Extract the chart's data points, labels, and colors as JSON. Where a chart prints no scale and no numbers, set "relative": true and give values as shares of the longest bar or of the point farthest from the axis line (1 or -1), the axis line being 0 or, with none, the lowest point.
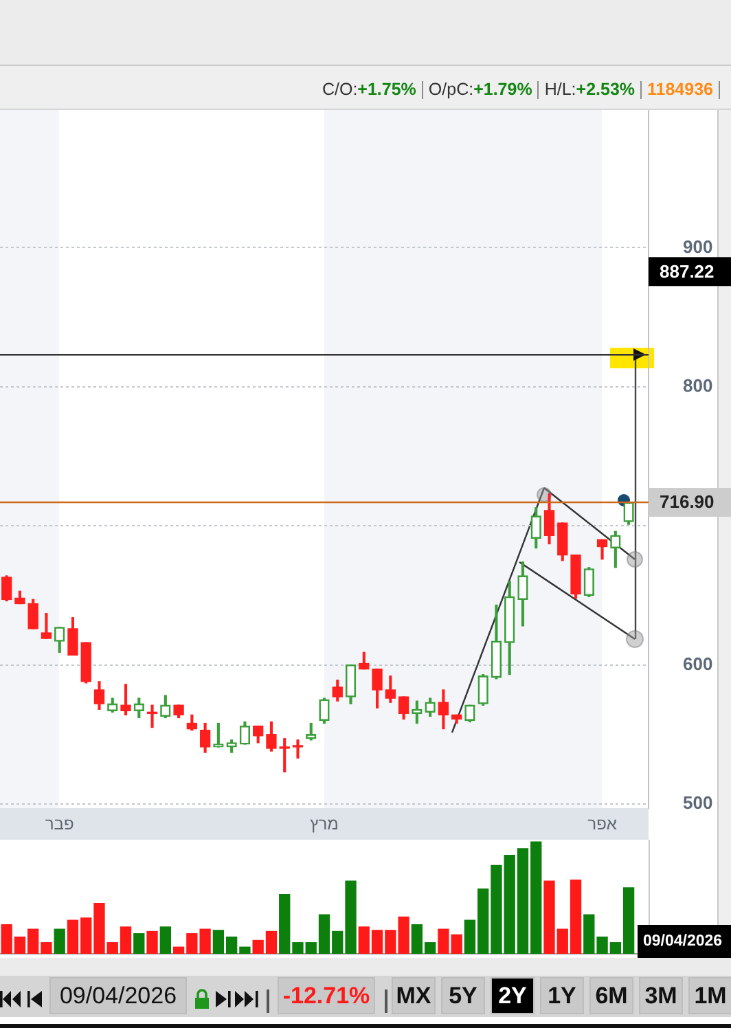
{
  "chart_data": [
    {
      "type": "candlestick",
      "categories": [
        null,
        null,
        null,
        null,
        "פבר",
        null,
        null,
        null,
        null,
        null,
        null,
        null,
        null,
        null,
        null,
        null,
        null,
        null,
        null,
        null,
        null,
        null,
        null,
        null,
        "מרץ",
        null,
        null,
        null,
        null,
        null,
        null,
        null,
        null,
        null,
        null,
        null,
        null,
        null,
        null,
        null,
        null,
        null,
        null,
        null,
        null,
        "אפר",
        null,
        null
      ],
      "ohlc": [
        [
          663,
          664,
          646,
          647
        ],
        [
          648,
          653,
          644,
          644
        ],
        [
          644,
          647,
          626,
          626
        ],
        [
          623,
          637,
          619,
          619
        ],
        [
          617,
          627,
          609,
          627
        ],
        [
          626,
          634,
          607,
          607
        ],
        [
          616,
          616,
          587,
          588
        ],
        [
          582,
          588,
          568,
          572
        ],
        [
          567,
          576,
          566,
          572
        ],
        [
          571,
          586,
          564,
          567
        ],
        [
          567,
          576,
          562,
          572
        ],
        [
          566,
          571,
          555,
          565
        ],
        [
          563,
          578,
          562,
          571
        ],
        [
          571,
          571,
          562,
          564
        ],
        [
          558,
          564,
          553,
          554
        ],
        [
          553,
          558,
          537,
          541
        ],
        [
          541,
          558,
          541,
          543
        ],
        [
          541,
          546,
          537,
          544
        ],
        [
          543,
          559,
          543,
          556
        ],
        [
          556,
          556,
          544,
          549
        ],
        [
          550,
          559,
          538,
          540
        ],
        [
          541,
          547,
          523,
          540
        ],
        [
          542,
          546,
          533,
          541
        ],
        [
          547,
          558,
          546,
          550
        ],
        [
          560,
          576,
          558,
          575
        ],
        [
          584,
          589,
          574,
          577
        ],
        [
          577,
          600,
          572,
          600
        ],
        [
          601,
          609,
          597,
          597
        ],
        [
          597,
          597,
          569,
          582
        ],
        [
          582,
          592,
          573,
          576
        ],
        [
          577,
          577,
          561,
          565
        ],
        [
          565,
          574,
          558,
          568
        ],
        [
          566,
          576,
          563,
          573
        ],
        [
          573,
          582,
          554,
          564
        ],
        [
          564,
          564,
          558,
          561
        ],
        [
          560,
          571,
          559,
          571
        ],
        [
          572,
          593,
          571,
          592
        ],
        [
          591,
          643,
          590,
          617
        ],
        [
          616,
          660,
          593,
          649
        ],
        [
          647,
          674,
          628,
          664
        ],
        [
          691,
          713,
          684,
          707
        ],
        [
          711,
          723,
          687,
          693
        ],
        [
          702,
          702,
          675,
          679
        ],
        [
          679,
          679,
          648,
          651
        ],
        [
          650,
          670,
          649,
          669
        ],
        [
          690,
          690,
          676,
          685
        ],
        [
          684,
          696,
          670,
          693
        ],
        [
          703,
          717,
          701,
          716.9
        ]
      ],
      "colors": [
        "#ff1f1f",
        "#ff1f1f",
        "#ff1f1f",
        "#ff1f1f",
        "#3b9e3b",
        "#ff1f1f",
        "#ff1f1f",
        "#ff1f1f",
        "#3b9e3b",
        "#ff1f1f",
        "#3b9e3b",
        "#ff1f1f",
        "#3b9e3b",
        "#ff1f1f",
        "#ff1f1f",
        "#ff1f1f",
        "#3b9e3b",
        "#3b9e3b",
        "#3b9e3b",
        "#ff1f1f",
        "#ff1f1f",
        "#ff1f1f",
        "#ff1f1f",
        "#3b9e3b",
        "#3b9e3b",
        "#ff1f1f",
        "#3b9e3b",
        "#ff1f1f",
        "#ff1f1f",
        "#ff1f1f",
        "#ff1f1f",
        "#3b9e3b",
        "#3b9e3b",
        "#ff1f1f",
        "#ff1f1f",
        "#3b9e3b",
        "#3b9e3b",
        "#3b9e3b",
        "#3b9e3b",
        "#3b9e3b",
        "#3b9e3b",
        "#ff1f1f",
        "#ff1f1f",
        "#ff1f1f",
        "#3b9e3b",
        "#ff1f1f",
        "#3b9e3b",
        "#3b9e3b"
      ],
      "ylim": [
        497,
        999
      ],
      "yticks": [
        500,
        600,
        {
          "value": 700,
          "label": null
        },
        800,
        900
      ],
      "grid": "y",
      "ref_lines": [
        {
          "axis": "y",
          "value": 716.9,
          "label": "716.90",
          "color": "#cc6a1a"
        },
        {
          "axis": "y",
          "value": 823,
          "color": "#333333"
        }
      ],
      "annotations": [
        "C/O:+1.75%",
        "O/pC:+1.79%",
        "H/L:+2.53%",
        "1184936",
        "887.22"
      ]
    },
    {
      "type": "bar",
      "relative": true,
      "categories": [
        null,
        null,
        null,
        null,
        null,
        null,
        null,
        null,
        null,
        null,
        null,
        null,
        null,
        null,
        null,
        null,
        null,
        null,
        null,
        null,
        null,
        null,
        null,
        null,
        null,
        null,
        null,
        null,
        null,
        null,
        null,
        null,
        null,
        null,
        null,
        null,
        null,
        null,
        null,
        null,
        null,
        null,
        null,
        null,
        null,
        null,
        null,
        null
      ],
      "values": [
        0.26,
        0.15,
        0.22,
        0.1,
        0.22,
        0.3,
        0.32,
        0.45,
        0.1,
        0.24,
        0.18,
        0.2,
        0.24,
        0.06,
        0.18,
        0.22,
        0.21,
        0.15,
        0.06,
        0.12,
        0.2,
        0.53,
        0.1,
        0.1,
        0.35,
        0.2,
        0.65,
        0.24,
        0.21,
        0.21,
        0.33,
        0.26,
        0.1,
        0.22,
        0.17,
        0.3,
        0.58,
        0.79,
        0.88,
        0.94,
        1,
        0.65,
        0.22,
        0.66,
        0.35,
        0.15,
        0.1,
        0.59
      ],
      "colors": [
        "#ff1a1a",
        "#ff1a1a",
        "#ff1a1a",
        "#ff1a1a",
        "#0d7f0d",
        "#ff1a1a",
        "#ff1a1a",
        "#ff1a1a",
        "#ff1a1a",
        "#ff1a1a",
        "#0d7f0d",
        "#ff1a1a",
        "#0d7f0d",
        "#ff1a1a",
        "#ff1a1a",
        "#ff1a1a",
        "#0d7f0d",
        "#0d7f0d",
        "#0d7f0d",
        "#ff1a1a",
        "#ff1a1a",
        "#0d7f0d",
        "#0d7f0d",
        "#0d7f0d",
        "#0d7f0d",
        "#0d7f0d",
        "#0d7f0d",
        "#ff1a1a",
        "#ff1a1a",
        "#ff1a1a",
        "#ff1a1a",
        "#0d7f0d",
        "#0d7f0d",
        "#ff1a1a",
        "#ff1a1a",
        "#0d7f0d",
        "#0d7f0d",
        "#0d7f0d",
        "#0d7f0d",
        "#0d7f0d",
        "#0d7f0d",
        "#ff1a1a",
        "#ff1a1a",
        "#ff1a1a",
        "#0d7f0d",
        "#0d7f0d",
        "#0d7f0d",
        "#0d7f0d"
      ],
      "tick_labels": false,
      "annotations": [
        "09/04/2026",
        "09/04/2026",
        "-12.71%",
        "MX",
        "5Y",
        "2Y",
        "1Y",
        "6M",
        "3M",
        "1M"
      ]
    }
  ]
}
